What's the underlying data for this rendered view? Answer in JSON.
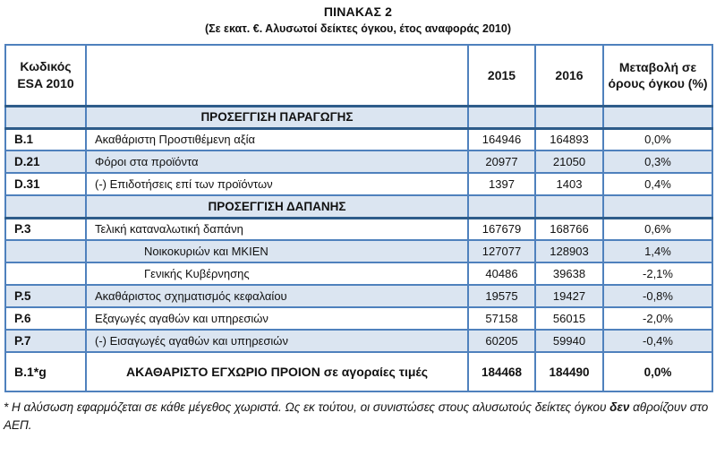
{
  "title": "ΠΙΝΑΚΑΣ 2",
  "subtitle": "(Σε εκατ. €. Αλυσωτοί δείκτες όγκου, έτος αναφοράς 2010)",
  "table": {
    "headers": {
      "code": "Κωδικός\nESA 2010",
      "description": "",
      "y2015": "2015",
      "y2016": "2016",
      "change": "Μεταβολή σε όρους όγκου (%)"
    },
    "rows": [
      {
        "kind": "section",
        "desc": "ΠΡΟΣΕΓΓΙΣΗ ΠΑΡΑΓΩΓΗΣ"
      },
      {
        "kind": "data",
        "shade": false,
        "code": "B.1",
        "desc": "Ακαθάριστη Προστιθέμενη αξία",
        "v2015": "164946",
        "v2016": "164893",
        "change": "0,0%"
      },
      {
        "kind": "data",
        "shade": true,
        "code": "D.21",
        "desc": "Φόροι στα προϊόντα",
        "v2015": "20977",
        "v2016": "21050",
        "change": "0,3%"
      },
      {
        "kind": "data",
        "shade": false,
        "code": "D.31",
        "desc": "(-) Επιδοτήσεις επί των προϊόντων",
        "v2015": "1397",
        "v2016": "1403",
        "change": "0,4%"
      },
      {
        "kind": "section",
        "desc": "ΠΡΟΣΕΓΓΙΣΗ ΔΑΠΑΝΗΣ"
      },
      {
        "kind": "data",
        "shade": false,
        "code": "P.3",
        "desc": "Τελική καταναλωτική δαπάνη",
        "v2015": "167679",
        "v2016": "168766",
        "change": "0,6%"
      },
      {
        "kind": "data",
        "shade": true,
        "indent": true,
        "code": "",
        "desc": "Νοικοκυριών και ΜΚΙΕΝ",
        "v2015": "127077",
        "v2016": "128903",
        "change": "1,4%"
      },
      {
        "kind": "data",
        "shade": false,
        "indent": true,
        "code": "",
        "desc": "Γενικής Κυβέρνησης",
        "v2015": "40486",
        "v2016": "39638",
        "change": "-2,1%"
      },
      {
        "kind": "data",
        "shade": true,
        "code": "P.5",
        "desc": "Ακαθάριστος σχηματισμός   κεφαλαίου",
        "v2015": "19575",
        "v2016": "19427",
        "change": "-0,8%"
      },
      {
        "kind": "data",
        "shade": false,
        "code": "P.6",
        "desc": "Εξαγωγές αγαθών και υπηρεσιών",
        "v2015": "57158",
        "v2016": "56015",
        "change": "-2,0%"
      },
      {
        "kind": "data",
        "shade": true,
        "code": "P.7",
        "desc": "(-) Εισαγωγές αγαθών και υπηρεσιών",
        "v2015": "60205",
        "v2016": "59940",
        "change": "-0,4%"
      },
      {
        "kind": "total",
        "code": "B.1*g",
        "desc": "ΑΚΑΘΑΡΙΣΤΟ ΕΓΧΩΡΙΟ ΠΡΟΙΟΝ σε αγοραίες τιμές",
        "v2015": "184468",
        "v2016": "184490",
        "change": "0,0%"
      }
    ]
  },
  "footnote": {
    "part1": "* Η αλύσωση εφαρμόζεται σε κάθε μέγεθος χωριστά. Ως εκ τούτου, οι συνιστώσες στους αλυσωτούς δείκτες όγκου ",
    "bold": "δεν",
    "part2": " αθροίζουν στο ΑΕΠ."
  },
  "colors": {
    "border_blue": "#4F81BD",
    "border_dark_blue": "#2E5C8A",
    "row_shade_blue": "#DBE5F1",
    "text": "#111111"
  }
}
